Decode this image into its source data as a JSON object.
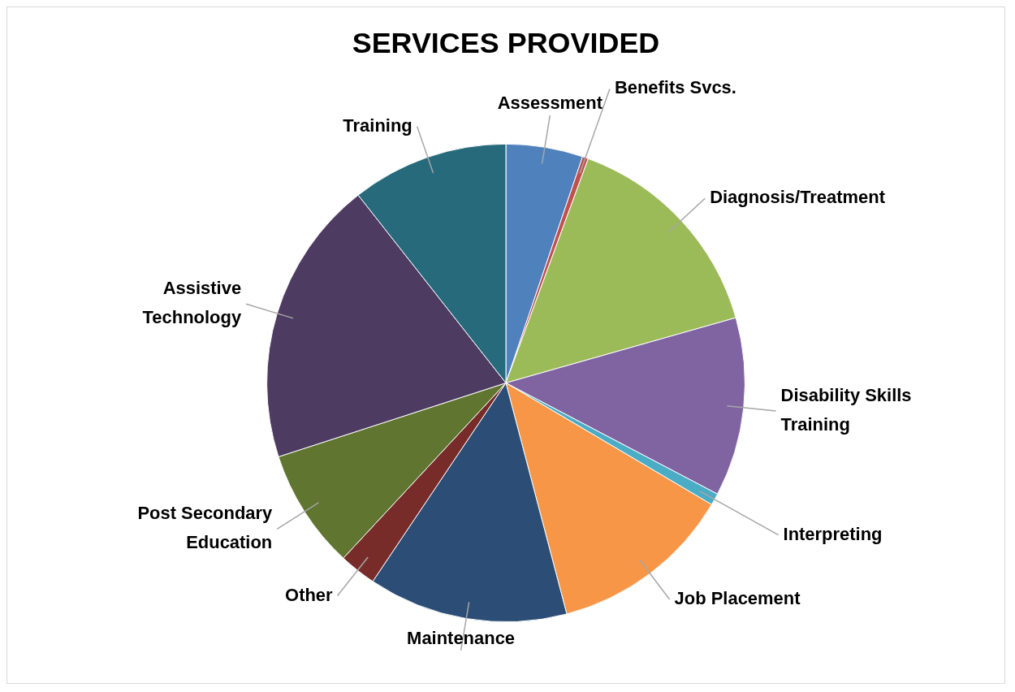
{
  "chart_data": {
    "type": "pie",
    "title": "SERVICES PROVIDED",
    "categories": [
      "Assessment",
      "Benefits Svcs.",
      "Diagnosis/Treatment",
      "Disability Skills Training",
      "Interpreting",
      "Job Placement",
      "Maintenance",
      "Other",
      "Post Secondary Education",
      "Assistive Technology",
      "Training"
    ],
    "values": [
      5.2,
      0.4,
      15.0,
      12.1,
      0.8,
      12.4,
      13.5,
      2.5,
      8.1,
      19.4,
      10.6
    ],
    "colors": [
      "#4f81bd",
      "#c0504d",
      "#9bbb59",
      "#8064a2",
      "#4bacc6",
      "#f79646",
      "#2c4d75",
      "#772c2a",
      "#5f7530",
      "#4d3b62",
      "#276a7c"
    ],
    "legend": false
  }
}
